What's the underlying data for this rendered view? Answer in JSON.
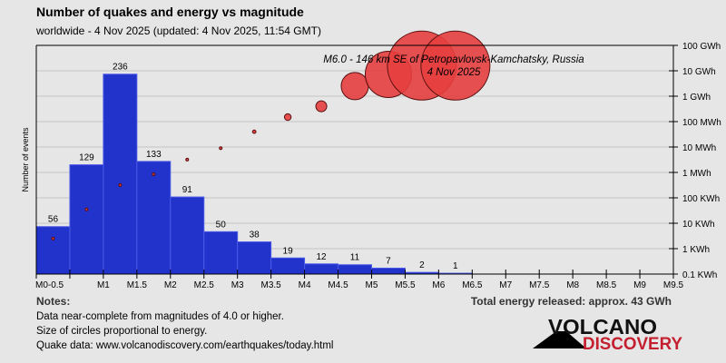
{
  "header": {
    "title": "Number of quakes and energy vs magnitude",
    "subtitle": "worldwide -  4 Nov 2025 (updated: 4 Nov 2025, 11:54 GMT)"
  },
  "chart_data": {
    "type": "bar",
    "title": "Number of quakes and energy vs magnitude",
    "ylabel": "Number of events",
    "ylim": [
      0,
      270
    ],
    "x_tick_labels": [
      "M0-0.5",
      "",
      "M1",
      "M1.5",
      "M2",
      "M2.5",
      "M3",
      "M3.5",
      "M4",
      "M4.5",
      "M5",
      "M5.5",
      "M6",
      "M6.5",
      "M7",
      "M7.5",
      "M8",
      "M8.5",
      "M9",
      "M9.5"
    ],
    "bins": [
      "0-0.5",
      "0.5-1",
      "1-1.5",
      "1.5-2",
      "2-2.5",
      "2.5-3",
      "3-3.5",
      "3.5-4",
      "4-4.5",
      "4.5-5",
      "5-5.5",
      "5.5-6",
      "6-6.5"
    ],
    "counts": [
      56,
      129,
      236,
      133,
      91,
      50,
      38,
      19,
      12,
      11,
      7,
      2,
      1
    ],
    "energy_axis": {
      "scale": "log",
      "tick_labels": [
        "0.1 KWh",
        "1 KWh",
        "10 KWh",
        "100 KWh",
        "1 MWh",
        "10 MWh",
        "100 MWh",
        "1 GWh",
        "10 GWh",
        "100 GWh"
      ],
      "range_kwh": [
        0.1,
        100000000
      ]
    },
    "energy_kwh": [
      2.5,
      35,
      320,
      850,
      3200,
      9000,
      40000,
      150000,
      400000,
      2500000,
      7200000,
      16000000,
      16000000
    ],
    "bar_color": "#2233cc",
    "circle_color": "#e53e3e",
    "grid": true,
    "annotation": {
      "line1": "M6.0 - 146 km SE of Petropavlovsk-Kamchatsky, Russia",
      "line2": "4 Nov 2025"
    }
  },
  "notes": {
    "heading": "Notes:",
    "lines": [
      "Data near-complete from magnitudes of 4.0 or higher.",
      "Size of circles proportional to energy.",
      "Quake data: www.volcanodiscovery.com/earthquakes/today.html"
    ]
  },
  "total_energy": "Total energy released: approx. 43 GWh",
  "logo": {
    "top": "VOLCANO",
    "bottom": "DISCOVERY"
  }
}
